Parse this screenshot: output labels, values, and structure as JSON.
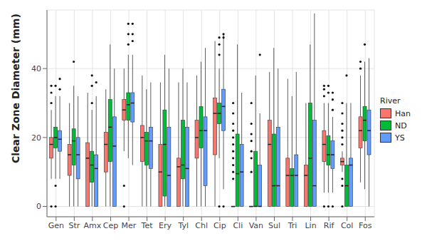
{
  "chart_data": {
    "type": "boxplot",
    "y_label": "Clear Zone Diameter (mm)",
    "legend_title": "River",
    "legend": "right",
    "grid": true,
    "categories": [
      "Gen",
      "Str",
      "Amx",
      "Cep",
      "Mer",
      "Tet",
      "Ery",
      "Tyl",
      "Chl",
      "Cip",
      "Cli",
      "Van",
      "Sul",
      "Tri",
      "Lin",
      "Rif",
      "Col",
      "Fos"
    ],
    "ylim": [
      -3,
      57
    ],
    "yticks": [
      0,
      20,
      40
    ],
    "series": [
      {
        "name": "Han",
        "color": "#F8766D",
        "min": [
          8,
          0,
          0,
          0,
          16,
          0,
          0,
          0,
          0,
          0,
          0,
          0,
          0,
          0,
          0,
          4,
          10,
          7
        ],
        "q1": [
          14,
          9,
          0,
          10,
          25,
          13,
          0,
          0,
          14,
          15,
          0,
          0,
          0,
          0,
          0,
          13,
          12,
          17
        ],
        "median": [
          18,
          15,
          14,
          18,
          28,
          20,
          10,
          11.5,
          20,
          27,
          0,
          0,
          18,
          9,
          9,
          18,
          13,
          22
        ],
        "q3": [
          20,
          18,
          18.5,
          21.5,
          31,
          23.5,
          18,
          14,
          25,
          31.5,
          0,
          0,
          25,
          14,
          12,
          22,
          14,
          26
        ],
        "max": [
          28,
          30,
          33,
          34,
          40,
          38,
          36,
          36,
          38,
          48,
          0,
          0,
          39,
          37,
          30,
          30,
          16,
          38
        ],
        "outliers": [
          [
            0,
            30,
            33,
            35
          ],
          [],
          [],
          [],
          [
            0,
            6
          ],
          [],
          [],
          [],
          [],
          [],
          [
            8,
            10,
            12,
            14,
            16,
            18,
            20,
            22,
            24,
            27,
            30
          ],
          [
            10,
            14,
            16,
            19,
            21,
            24,
            30
          ],
          [],
          [],
          [],
          [
            0,
            32,
            34,
            35
          ],
          [
            0,
            6,
            8,
            18,
            20,
            22,
            24,
            27,
            30
          ],
          [
            40,
            42
          ]
        ]
      },
      {
        "name": "ND",
        "color": "#00BA38",
        "min": [
          8,
          0,
          0,
          0,
          14,
          0,
          0,
          0,
          0,
          14,
          0,
          0,
          0,
          0,
          0,
          4,
          0,
          5
        ],
        "q1": [
          17,
          12,
          7,
          13,
          25,
          12,
          3,
          8,
          17,
          24,
          0,
          0,
          0,
          0,
          0,
          12,
          0,
          19
        ],
        "median": [
          20,
          19,
          12,
          23,
          29.5,
          19,
          18,
          12,
          22,
          27,
          9.5,
          0,
          6,
          9,
          14,
          15,
          6,
          25
        ],
        "q3": [
          23,
          22.5,
          16,
          31,
          33,
          21.5,
          28,
          25,
          29,
          30,
          21,
          16,
          21,
          11,
          30,
          20.5,
          12,
          29
        ],
        "max": [
          32,
          35,
          28,
          47,
          44,
          34,
          44,
          40,
          42,
          40,
          47,
          38,
          46,
          32,
          47,
          30,
          30,
          42
        ],
        "outliers": [
          [
            0,
            6,
            35
          ],
          [
            42
          ],
          [
            30,
            35,
            38
          ],
          [],
          [
            47,
            50,
            53
          ],
          [],
          [],
          [],
          [],
          [
            0,
            44,
            47,
            49
          ],
          [],
          [],
          [],
          [],
          [],
          [
            0,
            33,
            35
          ],
          [
            38
          ],
          [
            47
          ]
        ]
      },
      {
        "name": "YS",
        "color": "#619CFF",
        "min": [
          8,
          0,
          0,
          0,
          12,
          0,
          0,
          0,
          0,
          5,
          0,
          0,
          0,
          0,
          0,
          4,
          0,
          0
        ],
        "q1": [
          16,
          8,
          0,
          0,
          24.5,
          11,
          0,
          0,
          6,
          22,
          0,
          0,
          0,
          0,
          0,
          11,
          0,
          15
        ],
        "median": [
          19.5,
          15,
          11,
          17.5,
          30,
          19,
          9,
          11,
          22,
          29,
          10,
          0,
          6,
          9,
          6,
          15,
          12,
          22
        ],
        "q3": [
          22,
          20,
          15,
          26,
          33,
          23,
          23,
          23,
          26,
          34,
          18,
          12,
          23,
          15,
          25,
          19,
          14,
          28
        ],
        "max": [
          32,
          32,
          32,
          40,
          44,
          36,
          40,
          36,
          46,
          50,
          33,
          27,
          40,
          39,
          56,
          26,
          30,
          43
        ],
        "outliers": [
          [
            34,
            37
          ],
          [],
          [
            36
          ],
          [],
          [
            48,
            50,
            53
          ],
          [],
          [],
          [],
          [],
          [
            0,
            49,
            50
          ],
          [],
          [
            44
          ],
          [],
          [],
          [],
          [
            0,
            28,
            31,
            33
          ],
          [],
          []
        ]
      }
    ]
  }
}
